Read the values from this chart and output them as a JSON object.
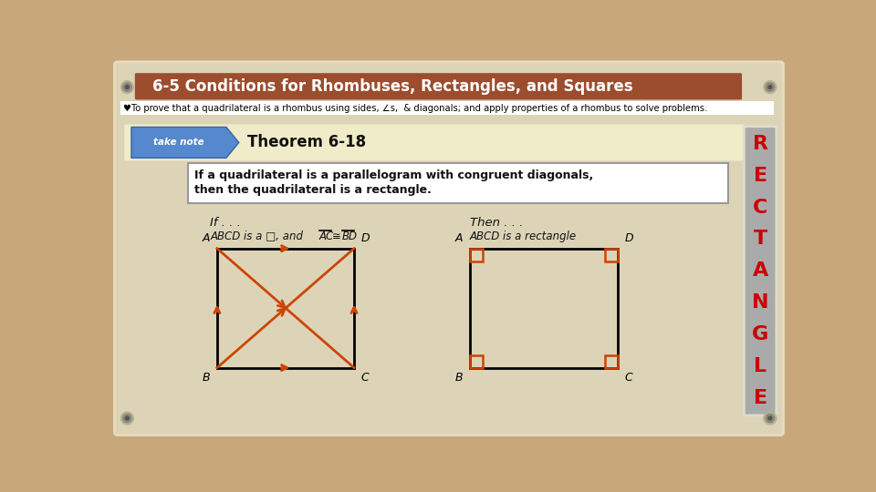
{
  "bg_color": "#c8a87a",
  "slide_bg": "#ddd4b8",
  "title_bg": "#9b4d2e",
  "title_text": "6-5 Conditions for Rhombuses, Rectangles, and Squares",
  "title_color": "#ffffff",
  "subtitle_text": "♥To prove that a quadrilateral is a rhombus using sides, ∠s,  & diagonals; and apply properties of a rhombus to solve problems.",
  "subtitle_color": "#000000",
  "theorem_bg": "#f0ebc8",
  "theorem_label": "Theorem 6-18",
  "theorem_text1": "If a quadrilateral is a parallelogram with congruent diagonals,",
  "theorem_text2": "then the quadrilateral is a rectangle.",
  "sidebar_bg": "#aaaaaa",
  "sidebar_letters": [
    "R",
    "E",
    "C",
    "T",
    "A",
    "N",
    "G",
    "L",
    "E"
  ],
  "sidebar_color": "#cc0000",
  "ribbon_color": "#5588cc",
  "arrow_color": "#cc4400",
  "black": "#111111",
  "white": "#ffffff",
  "screw_outer": "#b8b090",
  "screw_inner": "#888880",
  "corner_color": "#cc4400"
}
